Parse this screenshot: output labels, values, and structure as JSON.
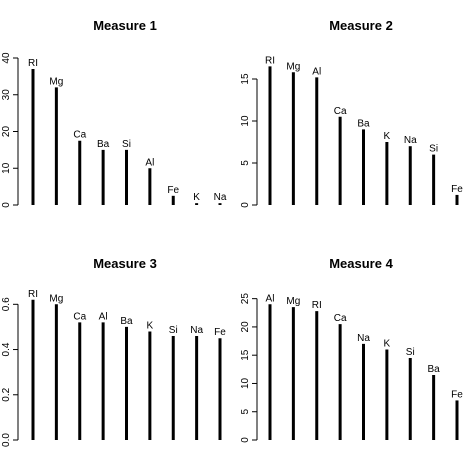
{
  "chart_data": [
    {
      "type": "bar",
      "title": "Measure 1",
      "categories": [
        "RI",
        "Mg",
        "Ca",
        "Ba",
        "Si",
        "Al",
        "Fe",
        "K",
        "Na"
      ],
      "values": [
        37,
        32,
        17.5,
        15,
        15,
        10,
        2.5,
        0.5,
        0.5
      ],
      "ylim": [
        0,
        40
      ],
      "yticks": [
        0,
        10,
        20,
        30,
        40
      ],
      "ytick_labels": [
        "0",
        "10",
        "20",
        "30",
        "40"
      ]
    },
    {
      "type": "bar",
      "title": "Measure 2",
      "categories": [
        "RI",
        "Mg",
        "Al",
        "Ca",
        "Ba",
        "K",
        "Na",
        "Si",
        "Fe"
      ],
      "values": [
        16.5,
        15.8,
        15.2,
        10.5,
        9,
        7.5,
        7,
        6,
        1.2
      ],
      "ylim": [
        0,
        17.5
      ],
      "yticks": [
        0,
        5,
        10,
        15
      ],
      "ytick_labels": [
        "0",
        "5",
        "10",
        "15"
      ]
    },
    {
      "type": "bar",
      "title": "Measure 3",
      "categories": [
        "RI",
        "Mg",
        "Ca",
        "Al",
        "Ba",
        "K",
        "Si",
        "Na",
        "Fe"
      ],
      "values": [
        0.62,
        0.6,
        0.52,
        0.52,
        0.5,
        0.48,
        0.46,
        0.46,
        0.45
      ],
      "ylim": [
        0,
        0.65
      ],
      "yticks": [
        0,
        0.2,
        0.4,
        0.6
      ],
      "ytick_labels": [
        "0.0",
        "0.2",
        "0.4",
        "0.6"
      ]
    },
    {
      "type": "bar",
      "title": "Measure 4",
      "categories": [
        "Al",
        "Mg",
        "RI",
        "Ca",
        "Na",
        "K",
        "Si",
        "Ba",
        "Fe"
      ],
      "values": [
        24,
        23.5,
        22.8,
        20.5,
        17,
        16,
        14.5,
        11.5,
        7
      ],
      "ylim": [
        0,
        26
      ],
      "yticks": [
        0,
        5,
        10,
        15,
        20,
        25
      ],
      "ytick_labels": [
        "0",
        "5",
        "10",
        "15",
        "20",
        "25"
      ]
    }
  ]
}
